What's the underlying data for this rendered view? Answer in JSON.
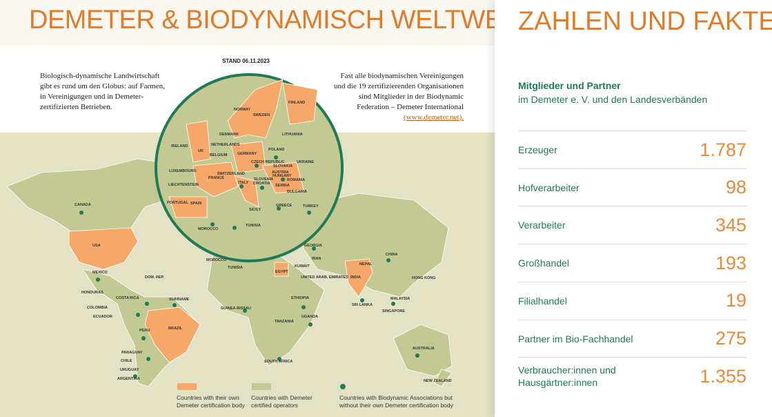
{
  "left": {
    "title": "DEMETER & BIODYNAMISCH WELTWEIT",
    "stand": "STAND 06.11.2023",
    "intro_left": [
      "Biologisch-dynamische Landwirtschaft",
      "gibt es rund um den Globus: auf Farmen,",
      "in Vereinigungen und in Demeter-",
      "zertifizierten Betrieben."
    ],
    "intro_right": [
      "Fast alle biodynamischen Vereinigungen",
      "und die 19 zertifizierenden Organisationen",
      "sind Mitglieder in der Biodynamic",
      "Federation – Demeter International"
    ],
    "link_line": "(www.demeter.net).",
    "map_labels": [
      "CANADA",
      "USA",
      "MEXICO",
      "DOM. REP.",
      "HONDURAS",
      "COSTA RICA",
      "COLOMBIA",
      "ECUADOR",
      "SURINAME",
      "PERU",
      "BRAZIL",
      "PARAGUAY",
      "CHILE",
      "URUGUAY",
      "ARGENTINA",
      "MOROCCO",
      "TUNISIA",
      "EGYPT",
      "GUINEA-BISSAU",
      "ETHIOPIA",
      "UGANDA",
      "TANZANIA",
      "SOUTH AFRICA",
      "GEORGIA",
      "IRAN",
      "KUWAIT",
      "UNITED ARAB. EMIRATES",
      "INDIA",
      "NEPAL",
      "CHINA",
      "HONG KONG",
      "SRI LANKA",
      "MALAYSIA",
      "SINGAPORE",
      "AUSTRALIA",
      "NEW ZEALAND",
      "NORWAY",
      "SWEDEN",
      "FINLAND",
      "DENMARK",
      "LITHUANIA",
      "IRELAND",
      "NETHERLANDS",
      "UK",
      "POLAND",
      "GERMANY",
      "UKRAINE",
      "BELGIUM",
      "CZECH REPUBLIC",
      "SLOVAKIA",
      "LUXEMBOURG",
      "SWITZERLAND",
      "AUSTRIA",
      "HUNGARY",
      "FRANCE",
      "SLOVENIA",
      "ROMANIA",
      "LIECHTENSTEIN",
      "ITALY",
      "CROATIA",
      "SERBIA",
      "BULGARIA",
      "PORTUGAL",
      "SPAIN",
      "GREECE",
      "TURKEY",
      "SICILY",
      "MOROCCO",
      "TUNISIA"
    ],
    "legend": [
      "Countries with their own Demeter certification body",
      "Countries with Demeter certified operators",
      "Countries with Biodynamic Associations but without their own Demeter certification body"
    ]
  },
  "right": {
    "title": "ZAHLEN UND FAKTEN",
    "section_title": "Mitglieder und Partner",
    "section_subtitle": "im Demeter e. V. und den Landesverbänden",
    "rows": [
      {
        "label": "Erzeuger",
        "value": "1.787"
      },
      {
        "label": "Hofverarbeiter",
        "value": "98"
      },
      {
        "label": "Verarbeiter",
        "value": "345"
      },
      {
        "label": "Großhandel",
        "value": "193"
      },
      {
        "label": "Filialhandel",
        "value": "19"
      },
      {
        "label": "Partner im Bio-Fachhandel",
        "value": "275"
      },
      {
        "label": "Verbraucher:innen und Hausgärtner:innen",
        "value": "1.355"
      }
    ]
  }
}
